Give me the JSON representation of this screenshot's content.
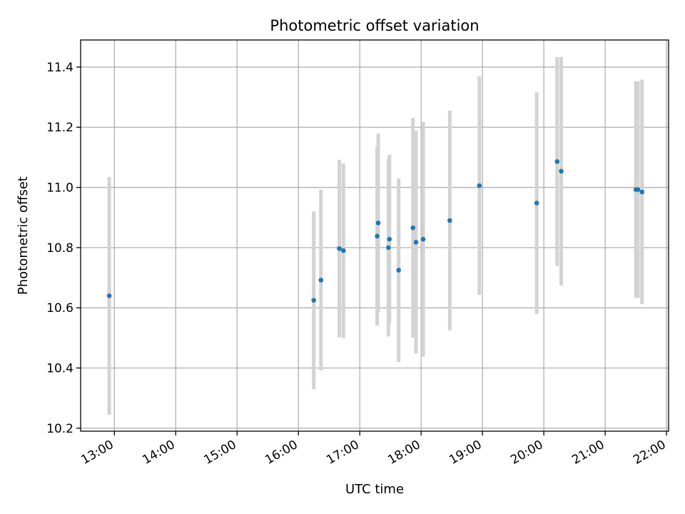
{
  "chart_data": {
    "type": "scatter",
    "title": "Photometric offset variation",
    "xlabel": "UTC time",
    "ylabel": "Photometric offset",
    "x_ticks": [
      "13:00",
      "14:00",
      "15:00",
      "16:00",
      "17:00",
      "18:00",
      "19:00",
      "20:00",
      "21:00",
      "22:00"
    ],
    "y_ticks": [
      "10.2",
      "10.4",
      "10.6",
      "10.8",
      "11.0",
      "11.2",
      "11.4"
    ],
    "xlim": [
      "12:27",
      "22:02"
    ],
    "ylim": [
      10.19,
      11.49
    ],
    "grid": true,
    "colors": {
      "point": "#1f77b4",
      "errorbar": "#d3d3d3",
      "grid": "#b0b0b0"
    },
    "points": [
      {
        "x": "12:55",
        "y": 10.64,
        "err": 0.395
      },
      {
        "x": "16:15",
        "y": 10.625,
        "err": 0.295
      },
      {
        "x": "16:22",
        "y": 10.692,
        "err": 0.3
      },
      {
        "x": "16:40",
        "y": 10.797,
        "err": 0.295
      },
      {
        "x": "16:44",
        "y": 10.79,
        "err": 0.29
      },
      {
        "x": "17:17",
        "y": 10.838,
        "err": 0.297
      },
      {
        "x": "17:18",
        "y": 10.882,
        "err": 0.297
      },
      {
        "x": "17:28",
        "y": 10.8,
        "err": 0.295
      },
      {
        "x": "17:29",
        "y": 10.828,
        "err": 0.28
      },
      {
        "x": "17:38",
        "y": 10.725,
        "err": 0.305
      },
      {
        "x": "17:52",
        "y": 10.866,
        "err": 0.365
      },
      {
        "x": "17:55",
        "y": 10.818,
        "err": 0.37
      },
      {
        "x": "18:02",
        "y": 10.828,
        "err": 0.39
      },
      {
        "x": "18:28",
        "y": 10.89,
        "err": 0.365
      },
      {
        "x": "18:57",
        "y": 11.006,
        "err": 0.363
      },
      {
        "x": "19:53",
        "y": 10.948,
        "err": 0.368
      },
      {
        "x": "20:13",
        "y": 11.086,
        "err": 0.347
      },
      {
        "x": "20:17",
        "y": 11.054,
        "err": 0.38
      },
      {
        "x": "21:30",
        "y": 10.993,
        "err": 0.36
      },
      {
        "x": "21:32",
        "y": 10.993,
        "err": 0.36
      },
      {
        "x": "21:36",
        "y": 10.985,
        "err": 0.373
      }
    ]
  }
}
